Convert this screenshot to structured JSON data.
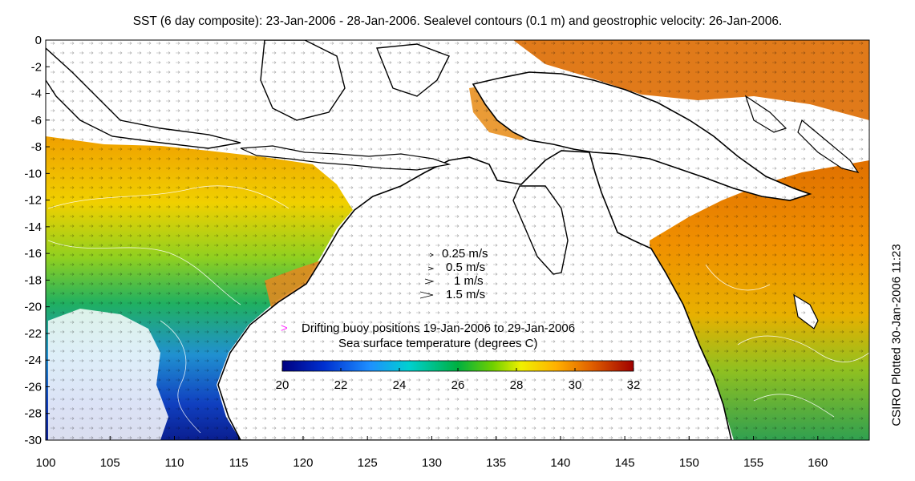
{
  "title": "SST (6 day composite): 23-Jan-2006 - 28-Jan-2006. Sealevel contours (0.1 m) and geostrophic velocity: 26-Jan-2006.",
  "side_label": "CSIRO Plotted 30-Jan-2006 11:23",
  "axes": {
    "x_ticks": [
      "100",
      "105",
      "110",
      "115",
      "120",
      "125",
      "130",
      "135",
      "140",
      "145",
      "150",
      "155",
      "160"
    ],
    "y_ticks": [
      "0",
      "-2",
      "-4",
      "-6",
      "-8",
      "-10",
      "-12",
      "-14",
      "-16",
      "-18",
      "-20",
      "-22",
      "-24",
      "-26",
      "-28",
      "-30"
    ],
    "lon_range": [
      100,
      164
    ],
    "lat_range": [
      -30,
      0
    ]
  },
  "velocity_legend": [
    {
      "label": "0.25 m/s",
      "speed": 0.25
    },
    {
      "label": "0.5 m/s",
      "speed": 0.5
    },
    {
      "label": "1 m/s",
      "speed": 1.0
    },
    {
      "label": "1.5 m/s",
      "speed": 1.5
    }
  ],
  "buoy_legend": {
    "symbol": ">",
    "label": "Drifting buoy positions 19-Jan-2006 to 29-Jan-2006",
    "color": "#ff33ff"
  },
  "colorbar": {
    "title": "Sea surface temperature (degrees C)",
    "ticks": [
      "20",
      "22",
      "24",
      "26",
      "28",
      "30",
      "32"
    ],
    "range": [
      20,
      32
    ]
  }
}
